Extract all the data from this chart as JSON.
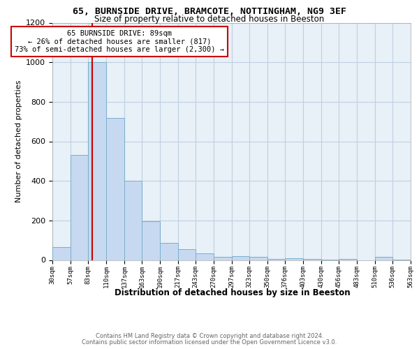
{
  "title_line1": "65, BURNSIDE DRIVE, BRAMCOTE, NOTTINGHAM, NG9 3EF",
  "title_line2": "Size of property relative to detached houses in Beeston",
  "xlabel": "Distribution of detached houses by size in Beeston",
  "ylabel": "Number of detached properties",
  "annotation_line1": "65 BURNSIDE DRIVE: 89sqm",
  "annotation_line2": "← 26% of detached houses are smaller (817)",
  "annotation_line3": "73% of semi-detached houses are larger (2,300) →",
  "property_size": 89,
  "bin_edges": [
    30,
    57,
    83,
    110,
    137,
    163,
    190,
    217,
    243,
    270,
    297,
    323,
    350,
    376,
    403,
    430,
    456,
    483,
    510,
    536,
    563
  ],
  "bar_heights": [
    65,
    530,
    1000,
    720,
    400,
    195,
    85,
    55,
    35,
    15,
    20,
    15,
    5,
    10,
    5,
    2,
    5,
    0,
    15,
    2
  ],
  "bar_color": "#c6d9f0",
  "bar_edge_color": "#7aaecc",
  "vline_color": "#cc0000",
  "ylim": [
    0,
    1200
  ],
  "yticks": [
    0,
    200,
    400,
    600,
    800,
    1000,
    1200
  ],
  "footer_line1": "Contains HM Land Registry data © Crown copyright and database right 2024.",
  "footer_line2": "Contains public sector information licensed under the Open Government Licence v3.0.",
  "plot_bg": "#e8f0f8",
  "grid_color": "#c0d0e0"
}
